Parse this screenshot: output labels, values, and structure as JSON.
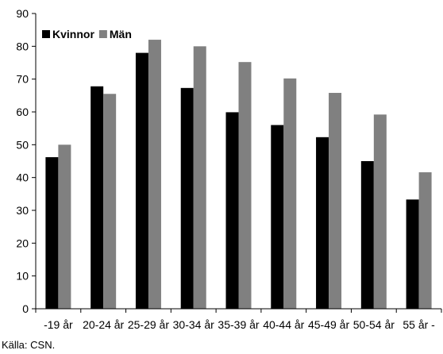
{
  "chart_data": {
    "type": "bar",
    "categories": [
      "-19 år",
      "20-24 år",
      "25-29 år",
      "30-34 år",
      "35-39 år",
      "40-44 år",
      "45-49 år",
      "50-54 år",
      "55 år -"
    ],
    "series": [
      {
        "name": "Kvinnor",
        "color": "#000000",
        "values": [
          46.2,
          67.8,
          78.0,
          67.3,
          59.9,
          56.0,
          52.3,
          45.0,
          33.3
        ]
      },
      {
        "name": "Män",
        "color": "#808080",
        "values": [
          50.0,
          65.5,
          82.0,
          80.0,
          75.2,
          70.2,
          65.8,
          59.2,
          41.6
        ]
      }
    ],
    "ylim": [
      0,
      90
    ],
    "yticks": [
      0,
      10,
      20,
      30,
      40,
      50,
      60,
      70,
      80,
      90
    ],
    "grid": false,
    "legend_position": "top-left"
  },
  "source": "Källa: CSN."
}
